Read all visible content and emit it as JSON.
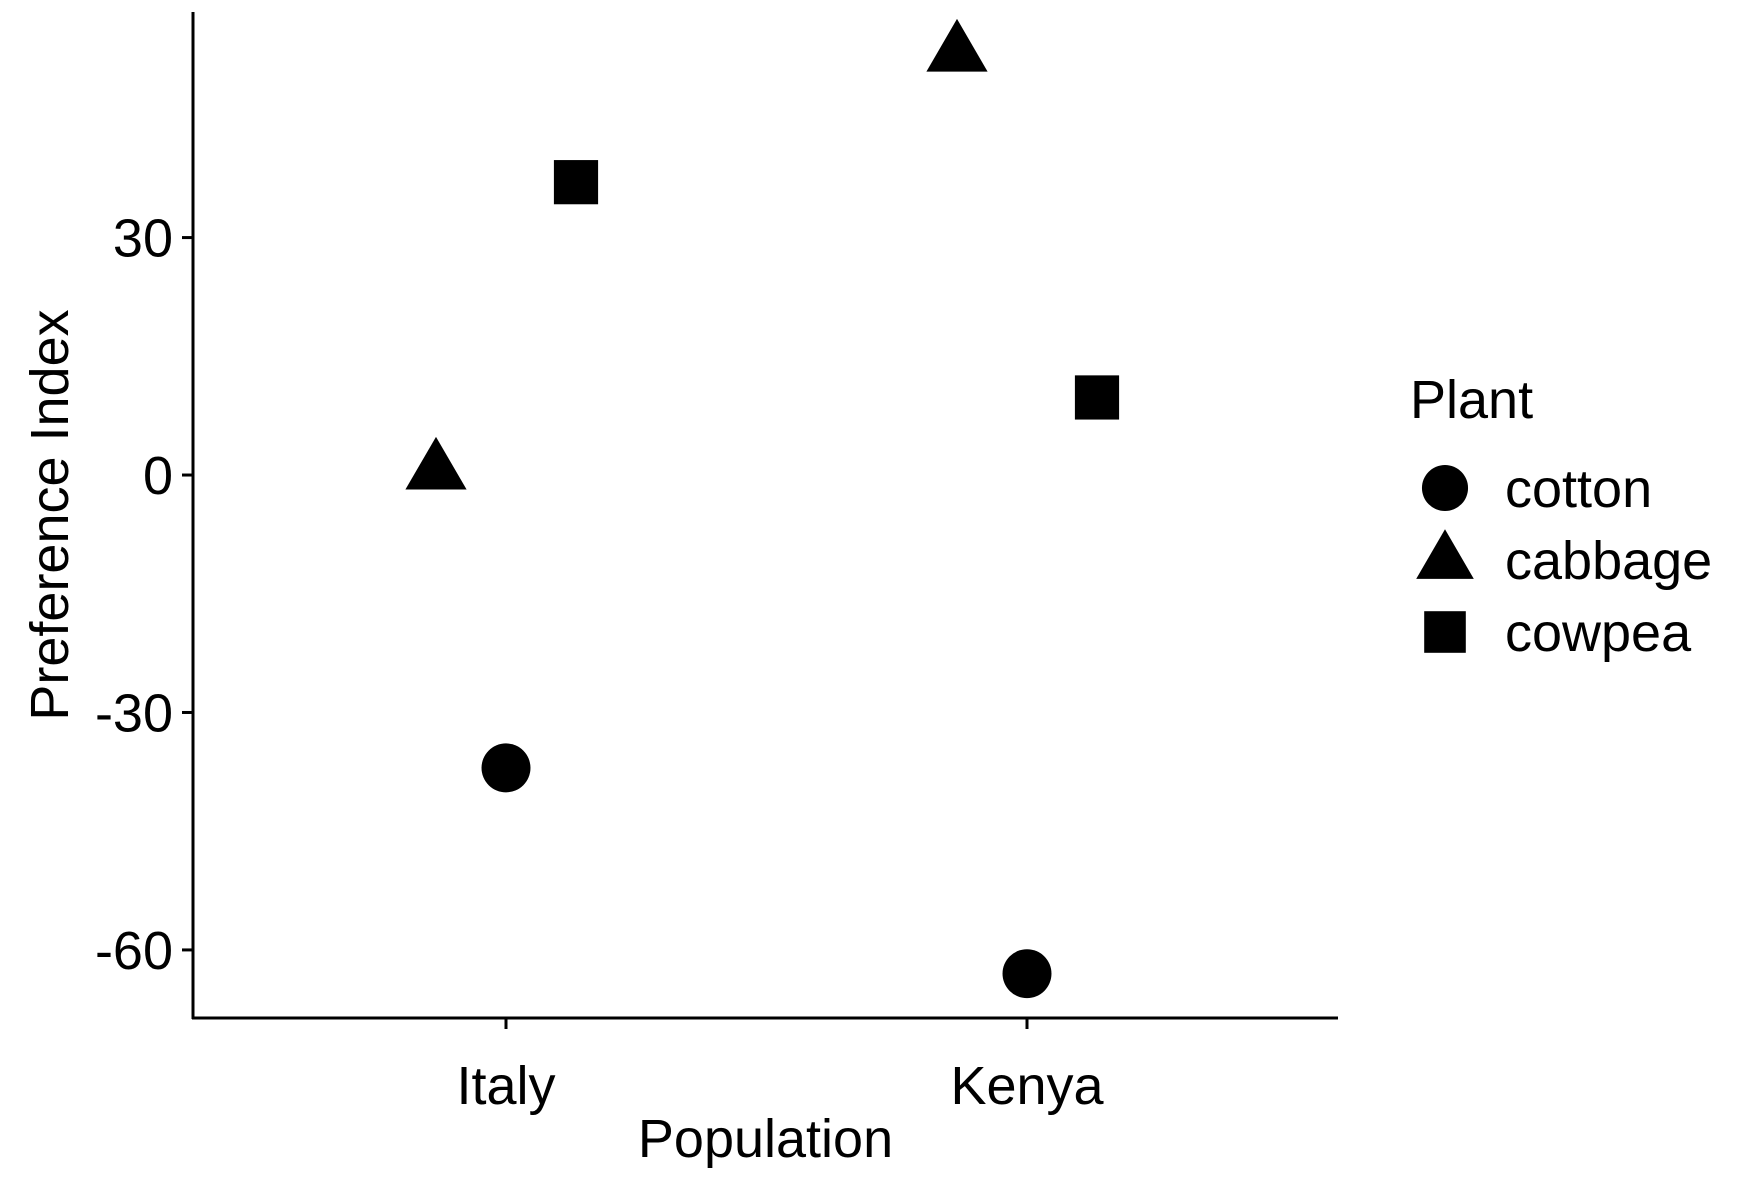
{
  "chart_data": {
    "type": "scatter",
    "title": "",
    "xlabel": "Population",
    "ylabel": "Preference Index",
    "categories": [
      "Italy",
      "Kenya"
    ],
    "y_ticks": [
      30,
      0,
      -30,
      -60
    ],
    "ylim": [
      -68.6,
      58.5
    ],
    "grid": false,
    "legend": {
      "title": "Plant",
      "placement": "right"
    },
    "colors": {
      "marker": "#000000",
      "axis": "#000000"
    },
    "series": [
      {
        "name": "cotton",
        "shape": "circle",
        "values": [
          -37.0,
          -63.0
        ]
      },
      {
        "name": "cabbage",
        "shape": "triangle",
        "values": [
          0.7,
          53.5
        ]
      },
      {
        "name": "cowpea",
        "shape": "square",
        "values": [
          37.0,
          9.8
        ]
      }
    ]
  }
}
